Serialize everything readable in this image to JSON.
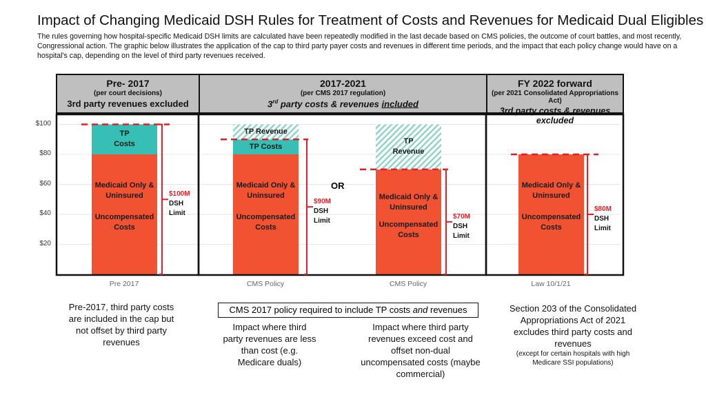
{
  "title": "Impact of Changing Medicaid DSH Rules for Treatment of Costs and Revenues for Medicaid Dual Eligibles",
  "subtitle": "The rules governing how hospital-specific Medicaid DSH limits are calculated have been repeatedly modified in the last decade based on CMS policies, the outcome of court battles, and most recently, Congressional action. The graphic below illustrates the application of the cap to third party payer costs and revenues in different time periods, and the impact that each policy change would have on a hospital's cap, depending on the level of third party revenues received.",
  "panels": [
    {
      "title": "Pre- 2017",
      "source": "(per court decisions)",
      "desc": "3rd party revenues excluded"
    },
    {
      "title": "2017-2021",
      "source": "(per CMS 2017 regulation)",
      "desc_pre": "3",
      "desc_sup": "rd",
      "desc_mid": " party costs & revenues ",
      "desc_em": "included"
    },
    {
      "title": "FY 2022 forward",
      "source": "(per 2021  Consolidated Appropriations Act)",
      "desc_pre": "3rd party costs & revenues ",
      "desc_em": "excluded"
    }
  ],
  "or_label": "OR",
  "colors": {
    "medicaid": "#f05232",
    "tp_costs": "#36bfb4",
    "tp_revenue_hatch": "#8fd3cc",
    "limit": "#e41e26"
  },
  "chart_data": {
    "type": "bar",
    "stacked": true,
    "ylim": [
      0,
      100
    ],
    "yticks": [
      "$20",
      "$40",
      "$60",
      "$80",
      "$100"
    ],
    "ytick_values": [
      20,
      40,
      60,
      80,
      100
    ],
    "grid": true,
    "categories": [
      "Pre 2017",
      "CMS Policy",
      "CMS Policy",
      "Law 10/1/21"
    ],
    "bars": [
      {
        "segments": [
          {
            "name": "Medicaid Only & Uninsured Uncompensated Costs",
            "label1": "Medicaid Only &\nUninsured",
            "label2": "Uncompensated\nCosts",
            "from": 0,
            "to": 80,
            "style": "medicaid"
          },
          {
            "label1": "TP\nCosts",
            "from": 80,
            "to": 100,
            "style": "tp_costs"
          }
        ],
        "limit": 100,
        "limit_label": "$100M",
        "limit_text": "DSH\nLimit"
      },
      {
        "segments": [
          {
            "label1": "Medicaid Only &\nUninsured",
            "label2": "Uncompensated\nCosts",
            "from": 0,
            "to": 80,
            "style": "medicaid"
          },
          {
            "label1": "TP Costs",
            "from": 80,
            "to": 90,
            "style": "tp_costs"
          },
          {
            "label1": "TP Revenue",
            "from": 90,
            "to": 100,
            "style": "hatch"
          }
        ],
        "limit": 90,
        "limit_label": "$90M",
        "limit_text": "DSH\nLimit"
      },
      {
        "segments": [
          {
            "label1": "Medicaid Only &\nUninsured",
            "label2": "Uncompensated\nCosts",
            "from": 0,
            "to": 70,
            "style": "medicaid"
          },
          {
            "label1": "TP\nRevenue",
            "from": 70,
            "to": 100,
            "style": "hatch"
          }
        ],
        "limit": 70,
        "limit_label": "$70M",
        "limit_text": "DSH\nLimit"
      },
      {
        "segments": [
          {
            "label1": "Medicaid Only &\nUninsured",
            "label2": "Uncompensated\nCosts",
            "from": 0,
            "to": 80,
            "style": "medicaid"
          }
        ],
        "limit": 80,
        "limit_label": "$80M",
        "limit_text": "DSH\nLimit"
      }
    ]
  },
  "notes": {
    "pre2017": "Pre-2017, third party costs are included in the cap but not offset by third party revenues",
    "callout_pre": "CMS 2017 policy required to include TP costs ",
    "callout_em": "and",
    "callout_post": " revenues",
    "cms_a": "Impact where third party revenues are less than cost (e.g. Medicare duals)",
    "cms_b": "Impact where third party revenues exceed cost and offset non-dual uncompensated costs (maybe commercial)",
    "law": "Section 203 of the Consolidated Appropriations Act of 2021 excludes third party costs and revenues",
    "law_small": "(except for certain hospitals with high Medicare SSI populations)"
  }
}
